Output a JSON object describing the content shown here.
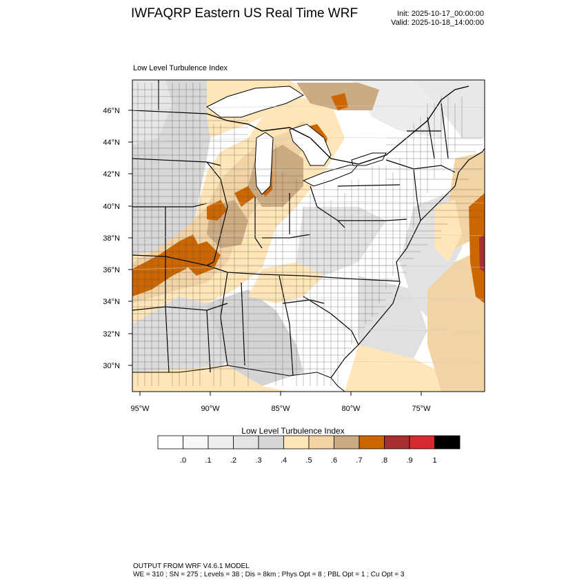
{
  "header": {
    "title": "IWFAQRP Eastern US Real Time WRF",
    "init": "Init: 2025-10-17_00:00:00",
    "valid": "Valid: 2025-10-18_14:00:00"
  },
  "panel": {
    "title": "Low Level Turbulence Index"
  },
  "axes": {
    "lat_labels": [
      "46°N",
      "44°N",
      "42°N",
      "40°N",
      "38°N",
      "36°N",
      "34°N",
      "32°N",
      "30°N"
    ],
    "lon_labels": [
      "95°W",
      "90°W",
      "85°W",
      "80°W",
      "75°W"
    ]
  },
  "legend": {
    "title": "Low Level Turbulence Index",
    "bins": [
      {
        "color": "#ffffff"
      },
      {
        "color": "#f8f8f8"
      },
      {
        "color": "#efefef"
      },
      {
        "color": "#e4e4e4"
      },
      {
        "color": "#d6d6d6"
      },
      {
        "color": "#ffe6b8"
      },
      {
        "color": "#f2d3a4"
      },
      {
        "color": "#ccab82"
      },
      {
        "color": "#cc6600"
      },
      {
        "color": "#a63030"
      },
      {
        "color": "#d42a30"
      },
      {
        "color": "#000000"
      }
    ],
    "tick_labels": [
      ".0",
      ".1",
      ".2",
      ".3",
      ".4",
      ".5",
      ".6",
      ".7",
      ".8",
      ".9",
      "1"
    ]
  },
  "footer": {
    "line1": "OUTPUT FROM WRF V4.6.1 MODEL",
    "line2": "WE = 310 ; SN = 275 ; Levels = 38 ; Dis = 8km ; Phys Opt = 8 ; PBL Opt = 1 ; Cu Opt = 3"
  },
  "map": {
    "water_color": "#ffffff",
    "land_outline_color": "#000000",
    "county_line_color": "#444444"
  }
}
